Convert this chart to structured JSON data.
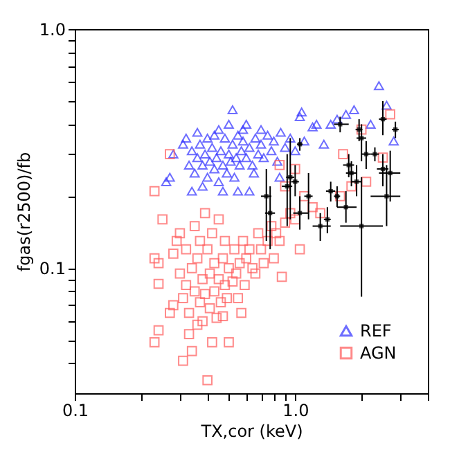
{
  "chart_data": {
    "type": "scatter",
    "xlabel": "TX,cor (keV)",
    "ylabel": "fgas(r2500)/fb",
    "log": "xy",
    "grid": false,
    "legend": "bottom right",
    "xlim": [
      0.1,
      4.0
    ],
    "ylim": [
      0.03,
      1.0
    ],
    "xticks": [
      0.1,
      {
        "value": 0.2,
        "label": null
      },
      {
        "value": 0.3,
        "label": null
      },
      {
        "value": 0.4,
        "label": null
      },
      {
        "value": 0.5,
        "label": null
      },
      {
        "value": 0.6,
        "label": null
      },
      {
        "value": 0.7,
        "label": null
      },
      {
        "value": 0.8,
        "label": null
      },
      {
        "value": 0.9,
        "label": null
      },
      {
        "value": 1,
        "label": "1.0"
      },
      {
        "value": 2,
        "label": null
      },
      {
        "value": 3,
        "label": null
      },
      {
        "value": 4,
        "label": null
      }
    ],
    "yticks": [
      {
        "value": 0.04,
        "label": null
      },
      {
        "value": 0.05,
        "label": null
      },
      {
        "value": 0.06,
        "label": null
      },
      {
        "value": 0.07,
        "label": null
      },
      {
        "value": 0.08,
        "label": null
      },
      {
        "value": 0.09,
        "label": null
      },
      0.1,
      {
        "value": 0.2,
        "label": null
      },
      {
        "value": 0.3,
        "label": null
      },
      {
        "value": 0.4,
        "label": null
      },
      {
        "value": 0.5,
        "label": null
      },
      {
        "value": 0.6,
        "label": null
      },
      {
        "value": 0.7,
        "label": null
      },
      {
        "value": 0.8,
        "label": null
      },
      {
        "value": 0.9,
        "label": null
      },
      {
        "value": 1,
        "label": "1.0"
      }
    ],
    "series": [
      {
        "name": "REF",
        "color": "#3030ff",
        "marker": "triangle",
        "x": [
          0.28,
          0.26,
          0.27,
          0.31,
          0.32,
          0.33,
          0.34,
          0.35,
          0.36,
          0.37,
          0.38,
          0.39,
          0.4,
          0.41,
          0.42,
          0.43,
          0.44,
          0.45,
          0.46,
          0.47,
          0.48,
          0.49,
          0.5,
          0.51,
          0.52,
          0.53,
          0.54,
          0.55,
          0.56,
          0.57,
          0.58,
          0.6,
          0.62,
          0.64,
          0.66,
          0.68,
          0.7,
          0.72,
          0.75,
          0.78,
          0.8,
          0.83,
          0.86,
          0.9,
          0.95,
          1.0,
          1.05,
          1.07,
          1.1,
          1.2,
          1.25,
          1.35,
          1.45,
          1.55,
          1.7,
          1.85,
          2.2,
          2.4,
          2.6,
          2.8,
          0.52,
          0.4,
          0.34,
          0.47,
          0.55,
          0.62,
          0.45,
          0.58,
          0.65,
          0.38,
          0.85,
          0.7,
          0.5,
          0.43,
          0.36,
          0.6
        ],
        "values": [
          0.3,
          0.23,
          0.24,
          0.33,
          0.35,
          0.27,
          0.31,
          0.25,
          0.29,
          0.33,
          0.27,
          0.3,
          0.24,
          0.28,
          0.32,
          0.26,
          0.29,
          0.23,
          0.31,
          0.27,
          0.35,
          0.25,
          0.3,
          0.28,
          0.33,
          0.24,
          0.29,
          0.36,
          0.27,
          0.31,
          0.34,
          0.29,
          0.32,
          0.27,
          0.35,
          0.3,
          0.33,
          0.29,
          0.36,
          0.31,
          0.34,
          0.28,
          0.37,
          0.32,
          0.35,
          0.31,
          0.43,
          0.45,
          0.34,
          0.39,
          0.4,
          0.33,
          0.4,
          0.42,
          0.44,
          0.46,
          0.4,
          0.58,
          0.48,
          0.34,
          0.46,
          0.35,
          0.21,
          0.21,
          0.21,
          0.21,
          0.38,
          0.38,
          0.25,
          0.22,
          0.24,
          0.38,
          0.4,
          0.36,
          0.37,
          0.4
        ]
      },
      {
        "name": "AGN",
        "color": "#ff5a5a",
        "marker": "square",
        "x": [
          0.23,
          0.25,
          0.27,
          0.23,
          0.24,
          0.24,
          0.23,
          0.24,
          0.27,
          0.28,
          0.28,
          0.29,
          0.3,
          0.3,
          0.31,
          0.31,
          0.32,
          0.32,
          0.33,
          0.33,
          0.34,
          0.34,
          0.35,
          0.35,
          0.36,
          0.36,
          0.37,
          0.37,
          0.38,
          0.38,
          0.39,
          0.39,
          0.4,
          0.4,
          0.41,
          0.41,
          0.42,
          0.42,
          0.43,
          0.43,
          0.44,
          0.45,
          0.45,
          0.46,
          0.47,
          0.47,
          0.48,
          0.48,
          0.49,
          0.5,
          0.5,
          0.52,
          0.53,
          0.54,
          0.55,
          0.56,
          0.57,
          0.58,
          0.59,
          0.6,
          0.62,
          0.64,
          0.66,
          0.68,
          0.7,
          0.72,
          0.75,
          0.78,
          0.8,
          0.82,
          0.85,
          0.87,
          0.9,
          0.95,
          1.0,
          1.05,
          1.0,
          0.9,
          1.1,
          1.2,
          1.3,
          1.6,
          1.8,
          2.1,
          2.0,
          2.7,
          2.5,
          1.65,
          0.85
        ],
        "values": [
          0.21,
          0.16,
          0.3,
          0.11,
          0.105,
          0.086,
          0.049,
          0.055,
          0.065,
          0.07,
          0.115,
          0.13,
          0.14,
          0.095,
          0.075,
          0.041,
          0.12,
          0.085,
          0.065,
          0.053,
          0.045,
          0.1,
          0.08,
          0.15,
          0.11,
          0.058,
          0.072,
          0.13,
          0.09,
          0.06,
          0.17,
          0.078,
          0.034,
          0.12,
          0.068,
          0.095,
          0.049,
          0.14,
          0.08,
          0.105,
          0.062,
          0.16,
          0.09,
          0.072,
          0.11,
          0.063,
          0.13,
          0.085,
          0.075,
          0.1,
          0.049,
          0.088,
          0.12,
          0.095,
          0.075,
          0.105,
          0.065,
          0.13,
          0.085,
          0.11,
          0.12,
          0.1,
          0.095,
          0.14,
          0.12,
          0.105,
          0.13,
          0.15,
          0.11,
          0.14,
          0.13,
          0.092,
          0.155,
          0.17,
          0.16,
          0.12,
          0.26,
          0.22,
          0.2,
          0.18,
          0.17,
          0.2,
          0.22,
          0.23,
          0.38,
          0.44,
          0.29,
          0.3,
          0.27
        ]
      },
      {
        "color": "#000000",
        "marker": "square",
        "x": [
          0.74,
          0.77,
          0.95,
          0.92,
          1.0,
          1.05,
          1.05,
          1.15,
          1.3,
          1.4,
          1.45,
          1.55,
          1.6,
          1.7,
          1.75,
          1.8,
          1.9,
          1.95,
          2.0,
          2.0,
          2.1,
          2.3,
          2.5,
          2.6,
          2.7,
          2.5,
          2.85
        ],
        "values": [
          0.2,
          0.17,
          0.24,
          0.22,
          0.23,
          0.33,
          0.17,
          0.2,
          0.15,
          0.16,
          0.21,
          0.2,
          0.4,
          0.18,
          0.27,
          0.25,
          0.23,
          0.38,
          0.35,
          0.15,
          0.3,
          0.3,
          0.26,
          0.2,
          0.25,
          0.42,
          0.38
        ],
        "errors": [
          [
            0.13,
            0.26
          ],
          [
            0.12,
            0.22
          ],
          [
            0.16,
            0.35
          ],
          [
            0.15,
            0.3
          ],
          [
            0.2,
            0.27
          ],
          [
            0.31,
            0.35
          ],
          [
            0.145,
            0.2
          ],
          [
            0.16,
            0.25
          ],
          [
            0.13,
            0.17
          ],
          [
            0.14,
            0.18
          ],
          [
            0.19,
            0.23
          ],
          [
            0.18,
            0.22
          ],
          [
            0.37,
            0.43
          ],
          [
            0.155,
            0.21
          ],
          [
            0.24,
            0.3
          ],
          [
            0.22,
            0.28
          ],
          [
            0.2,
            0.27
          ],
          [
            0.34,
            0.42
          ],
          [
            0.28,
            0.4
          ],
          [
            0.076,
            0.24
          ],
          [
            0.26,
            0.34
          ],
          [
            0.28,
            0.32
          ],
          [
            0.22,
            0.3
          ],
          [
            0.15,
            0.27
          ],
          [
            0.19,
            0.31
          ],
          [
            0.36,
            0.5
          ],
          [
            0.35,
            0.41
          ]
        ],
        "xerrors": [
          [
            0.7,
            0.78
          ],
          [
            0.73,
            0.81
          ],
          [
            0.91,
            0.99
          ],
          [
            0.87,
            0.97
          ],
          [
            0.96,
            1.04
          ],
          [
            1.02,
            1.08
          ],
          [
            0.98,
            1.15
          ],
          [
            1.1,
            1.2
          ],
          [
            1.2,
            1.45
          ],
          [
            1.35,
            1.45
          ],
          [
            1.38,
            1.52
          ],
          [
            1.5,
            1.6
          ],
          [
            1.5,
            1.75
          ],
          [
            1.55,
            1.9
          ],
          [
            1.65,
            1.85
          ],
          [
            1.7,
            1.9
          ],
          [
            1.8,
            2.0
          ],
          [
            1.88,
            2.02
          ],
          [
            1.9,
            2.1
          ],
          [
            1.6,
            2.5
          ],
          [
            2.0,
            2.2
          ],
          [
            2.2,
            2.4
          ],
          [
            2.35,
            2.65
          ],
          [
            2.2,
            3.0
          ],
          [
            2.4,
            3.0
          ],
          [
            2.4,
            2.6
          ],
          [
            2.75,
            2.95
          ]
        ]
      }
    ]
  }
}
